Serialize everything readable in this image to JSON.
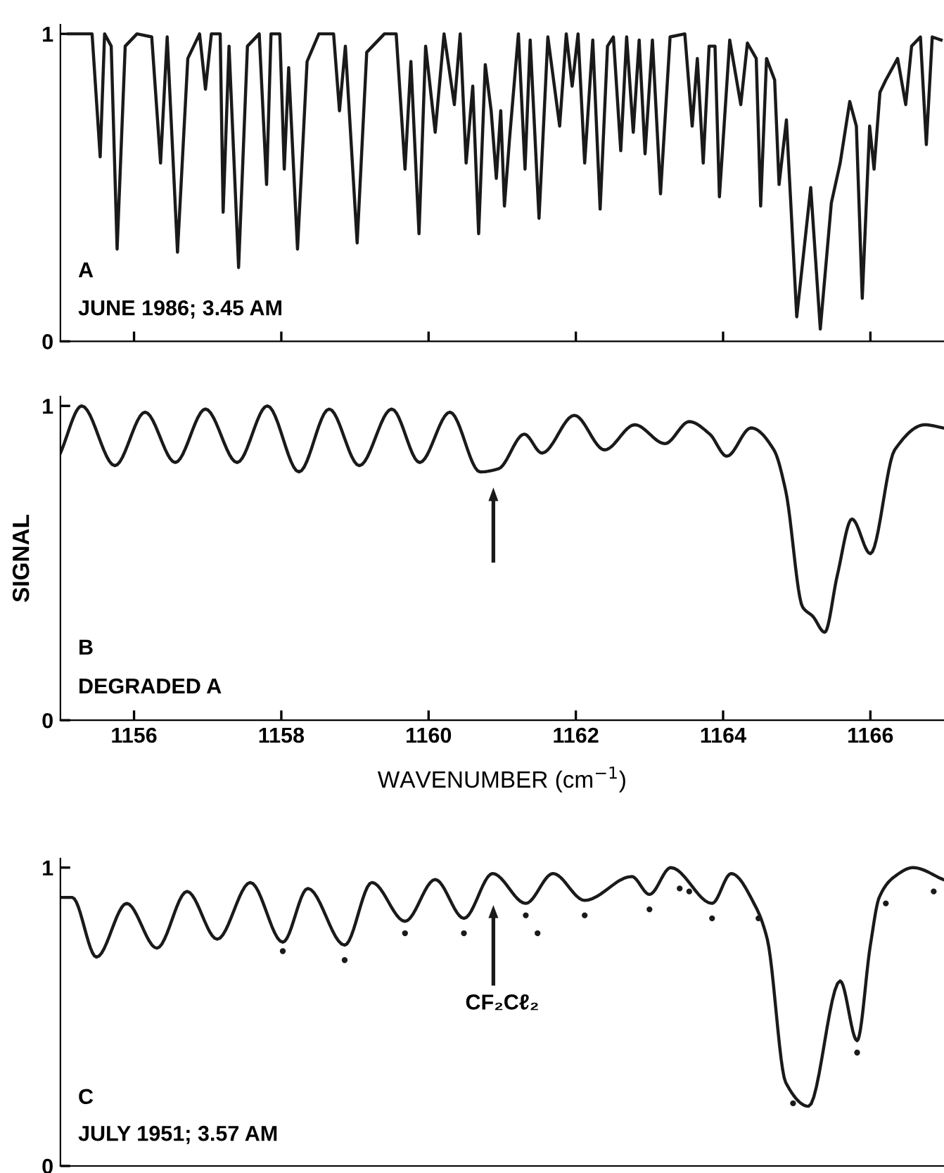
{
  "chart_data": [
    {
      "type": "line",
      "xlim": [
        1155.0,
        1167.0
      ],
      "ylim": [
        0,
        1.03
      ],
      "yticks": [
        0,
        1
      ],
      "xticks": [
        {
          "value": 1156,
          "label": null
        },
        {
          "value": 1158,
          "label": null
        },
        {
          "value": 1160,
          "label": null
        },
        {
          "value": 1162,
          "label": null
        },
        {
          "value": 1164,
          "label": null
        },
        {
          "value": 1166,
          "label": null
        }
      ],
      "tick_labels": "y",
      "grid": false,
      "legend": false,
      "marker": "none",
      "line_style": "solid",
      "annotations": [
        "A",
        "JUNE 1986; 3.45 AM"
      ],
      "series": [
        {
          "color": "#1a1a1a",
          "x": [
            1155.11,
            1155.43,
            1155.54,
            1155.6,
            1155.69,
            1155.77,
            1155.88,
            1156.04,
            1156.24,
            1156.36,
            1156.45,
            1156.59,
            1156.73,
            1156.89,
            1156.97,
            1157.05,
            1157.17,
            1157.21,
            1157.29,
            1157.42,
            1157.54,
            1157.7,
            1157.8,
            1157.86,
            1157.98,
            1158.04,
            1158.1,
            1158.22,
            1158.35,
            1158.51,
            1158.71,
            1158.79,
            1158.87,
            1159.03,
            1159.16,
            1159.4,
            1159.56,
            1159.68,
            1159.76,
            1159.87,
            1159.96,
            1160.09,
            1160.21,
            1160.35,
            1160.43,
            1160.51,
            1160.6,
            1160.68,
            1160.77,
            1160.85,
            1160.92,
            1160.98,
            1161.03,
            1161.1,
            1161.22,
            1161.31,
            1161.38,
            1161.5,
            1161.62,
            1161.78,
            1161.87,
            1161.95,
            1162.03,
            1162.12,
            1162.23,
            1162.33,
            1162.43,
            1162.51,
            1162.61,
            1162.69,
            1162.78,
            1162.86,
            1162.94,
            1163.04,
            1163.15,
            1163.28,
            1163.48,
            1163.58,
            1163.65,
            1163.73,
            1163.81,
            1163.89,
            1163.95,
            1164.09,
            1164.24,
            1164.33,
            1164.45,
            1164.51,
            1164.59,
            1164.7,
            1164.76,
            1164.86,
            1165.0,
            1165.19,
            1165.32,
            1165.47,
            1165.59,
            1165.72,
            1165.81,
            1165.89,
            1165.99,
            1166.05,
            1166.13,
            1166.21,
            1166.37,
            1166.48,
            1166.56,
            1166.68,
            1166.76,
            1166.84,
            1166.96
          ],
          "values": [
            1.0,
            1.0,
            0.6,
            1.0,
            0.96,
            0.3,
            0.96,
            1.0,
            0.99,
            0.58,
            0.99,
            0.29,
            0.92,
            1.0,
            0.82,
            1.0,
            1.0,
            0.42,
            0.96,
            0.24,
            0.96,
            1.0,
            0.51,
            1.0,
            1.0,
            0.56,
            0.89,
            0.3,
            0.91,
            1.0,
            1.0,
            0.75,
            0.96,
            0.32,
            0.94,
            1.0,
            1.0,
            0.56,
            0.91,
            0.35,
            0.96,
            0.68,
            1.0,
            0.77,
            1.0,
            0.58,
            0.83,
            0.35,
            0.9,
            0.75,
            0.53,
            0.75,
            0.44,
            0.66,
            1.0,
            0.56,
            0.98,
            0.4,
            0.99,
            0.7,
            1.0,
            0.83,
            1.0,
            0.58,
            0.98,
            0.43,
            0.96,
            0.99,
            0.62,
            0.99,
            0.68,
            0.98,
            0.61,
            0.98,
            0.48,
            0.99,
            1.0,
            0.7,
            0.92,
            0.58,
            0.96,
            0.96,
            0.47,
            0.98,
            0.77,
            0.97,
            0.92,
            0.44,
            0.92,
            0.85,
            0.51,
            0.72,
            0.08,
            0.5,
            0.04,
            0.45,
            0.58,
            0.78,
            0.7,
            0.14,
            0.7,
            0.56,
            0.81,
            0.85,
            0.92,
            0.77,
            0.96,
            0.99,
            0.64,
            0.99,
            0.98
          ]
        }
      ]
    },
    {
      "type": "line",
      "xlim": [
        1155.0,
        1167.0
      ],
      "ylim": [
        0,
        1.03
      ],
      "yticks": [
        0,
        1
      ],
      "xticks": [
        1156,
        1158,
        1160,
        1162,
        1164,
        1166
      ],
      "ylabel": "SIGNAL",
      "xlabel": "WAVENUMBER (cm$^{−1}$)",
      "grid": false,
      "legend": false,
      "marker": "none",
      "line_style": "solid",
      "annotations": [
        "B",
        "DEGRADED A"
      ],
      "series": [
        {
          "color": "#1a1a1a",
          "x": [
            1155.0,
            1155.29,
            1155.74,
            1156.15,
            1156.56,
            1156.97,
            1157.4,
            1157.81,
            1158.24,
            1158.65,
            1159.06,
            1159.5,
            1159.88,
            1160.29,
            1160.7,
            1160.95,
            1161.3,
            1161.54,
            1161.98,
            1162.39,
            1162.8,
            1163.21,
            1163.54,
            1163.82,
            1164.05,
            1164.38,
            1164.69,
            1164.85,
            1165.08,
            1165.22,
            1165.38,
            1165.55,
            1165.75,
            1166.0,
            1166.33,
            1166.74,
            1166.99
          ],
          "values": [
            0.85,
            1.0,
            0.81,
            0.98,
            0.82,
            0.99,
            0.82,
            1.0,
            0.79,
            0.99,
            0.81,
            0.99,
            0.82,
            0.98,
            0.79,
            0.8,
            0.91,
            0.85,
            0.97,
            0.86,
            0.94,
            0.88,
            0.95,
            0.91,
            0.84,
            0.93,
            0.86,
            0.73,
            0.36,
            0.33,
            0.28,
            0.46,
            0.64,
            0.53,
            0.86,
            0.94,
            0.93
          ]
        }
      ]
    },
    {
      "type": "line",
      "xlim": [
        1155.0,
        1167.0
      ],
      "ylim": [
        0,
        1.03
      ],
      "yticks": [
        0,
        1
      ],
      "tick_labels": "y",
      "grid": false,
      "legend": false,
      "marker": "none",
      "line_style": "solid",
      "annotations": [
        "C",
        "JULY 1951; 3.57 AM",
        "CF₂Cℓ₂"
      ],
      "series": [
        {
          "color": "#1a1a1a",
          "x": [
            1155.0,
            1155.16,
            1155.49,
            1155.9,
            1156.31,
            1156.72,
            1157.13,
            1157.58,
            1158.02,
            1158.36,
            1158.86,
            1159.23,
            1159.68,
            1160.09,
            1160.48,
            1160.87,
            1161.32,
            1161.69,
            1162.12,
            1162.76,
            1163.0,
            1163.29,
            1163.85,
            1164.11,
            1164.44,
            1164.6,
            1164.85,
            1165.16,
            1165.59,
            1165.82,
            1166.0,
            1166.12,
            1166.33,
            1166.58,
            1166.99
          ],
          "values": [
            0.9,
            0.9,
            0.7,
            0.88,
            0.73,
            0.92,
            0.76,
            0.95,
            0.75,
            0.93,
            0.74,
            0.95,
            0.82,
            0.96,
            0.83,
            0.98,
            0.88,
            0.98,
            0.89,
            0.97,
            0.91,
            1.0,
            0.88,
            0.98,
            0.87,
            0.76,
            0.28,
            0.2,
            0.62,
            0.42,
            0.74,
            0.9,
            0.97,
            1.0,
            0.96
          ]
        },
        {
          "type": "scatter",
          "color": "#1a1a1a",
          "marker": "circle",
          "x": [
            1158.02,
            1158.86,
            1159.68,
            1160.48,
            1161.32,
            1161.48,
            1162.12,
            1163.0,
            1163.41,
            1163.54,
            1163.85,
            1164.48,
            1164.95,
            1165.82,
            1166.21,
            1166.86
          ],
          "values": [
            0.72,
            0.69,
            0.78,
            0.78,
            0.84,
            0.78,
            0.84,
            0.86,
            0.93,
            0.92,
            0.83,
            0.83,
            0.21,
            0.38,
            0.88,
            0.92
          ]
        }
      ]
    }
  ]
}
